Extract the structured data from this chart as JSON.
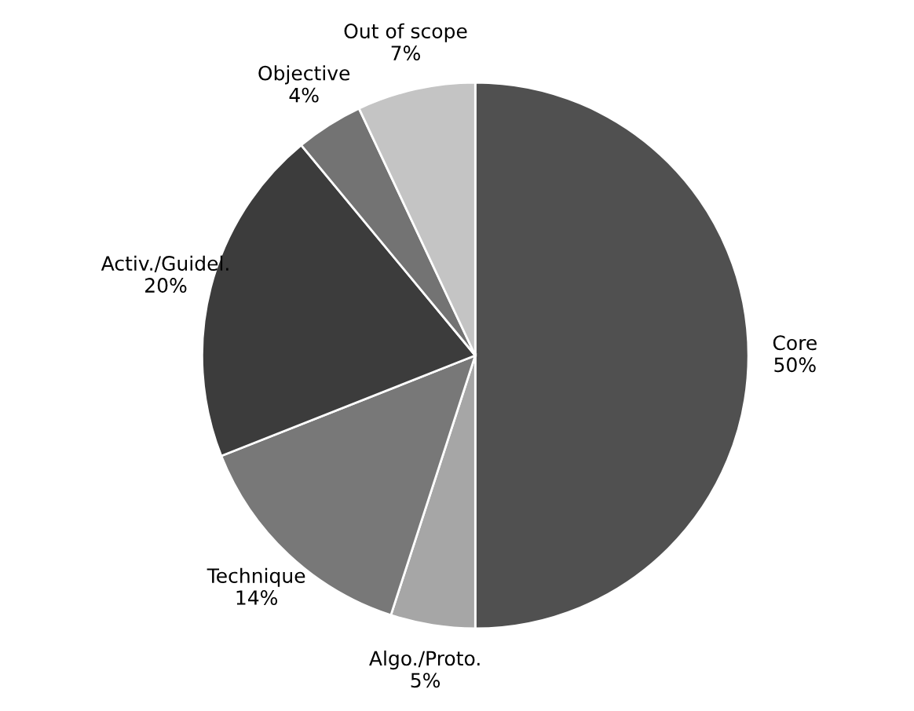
{
  "chart_data": {
    "type": "pie",
    "categories": [
      "Core",
      "Algo./Proto.",
      "Technique",
      "Activ./Guidel.",
      "Objective",
      "Out of scope"
    ],
    "values": [
      50,
      5,
      14,
      20,
      4,
      7
    ],
    "value_labels": [
      "50%",
      "5%",
      "14%",
      "20%",
      "4%",
      "7%"
    ],
    "colors": [
      "#505050",
      "#a6a6a6",
      "#787878",
      "#3c3c3c",
      "#737373",
      "#c4c4c4"
    ],
    "legend": false
  }
}
